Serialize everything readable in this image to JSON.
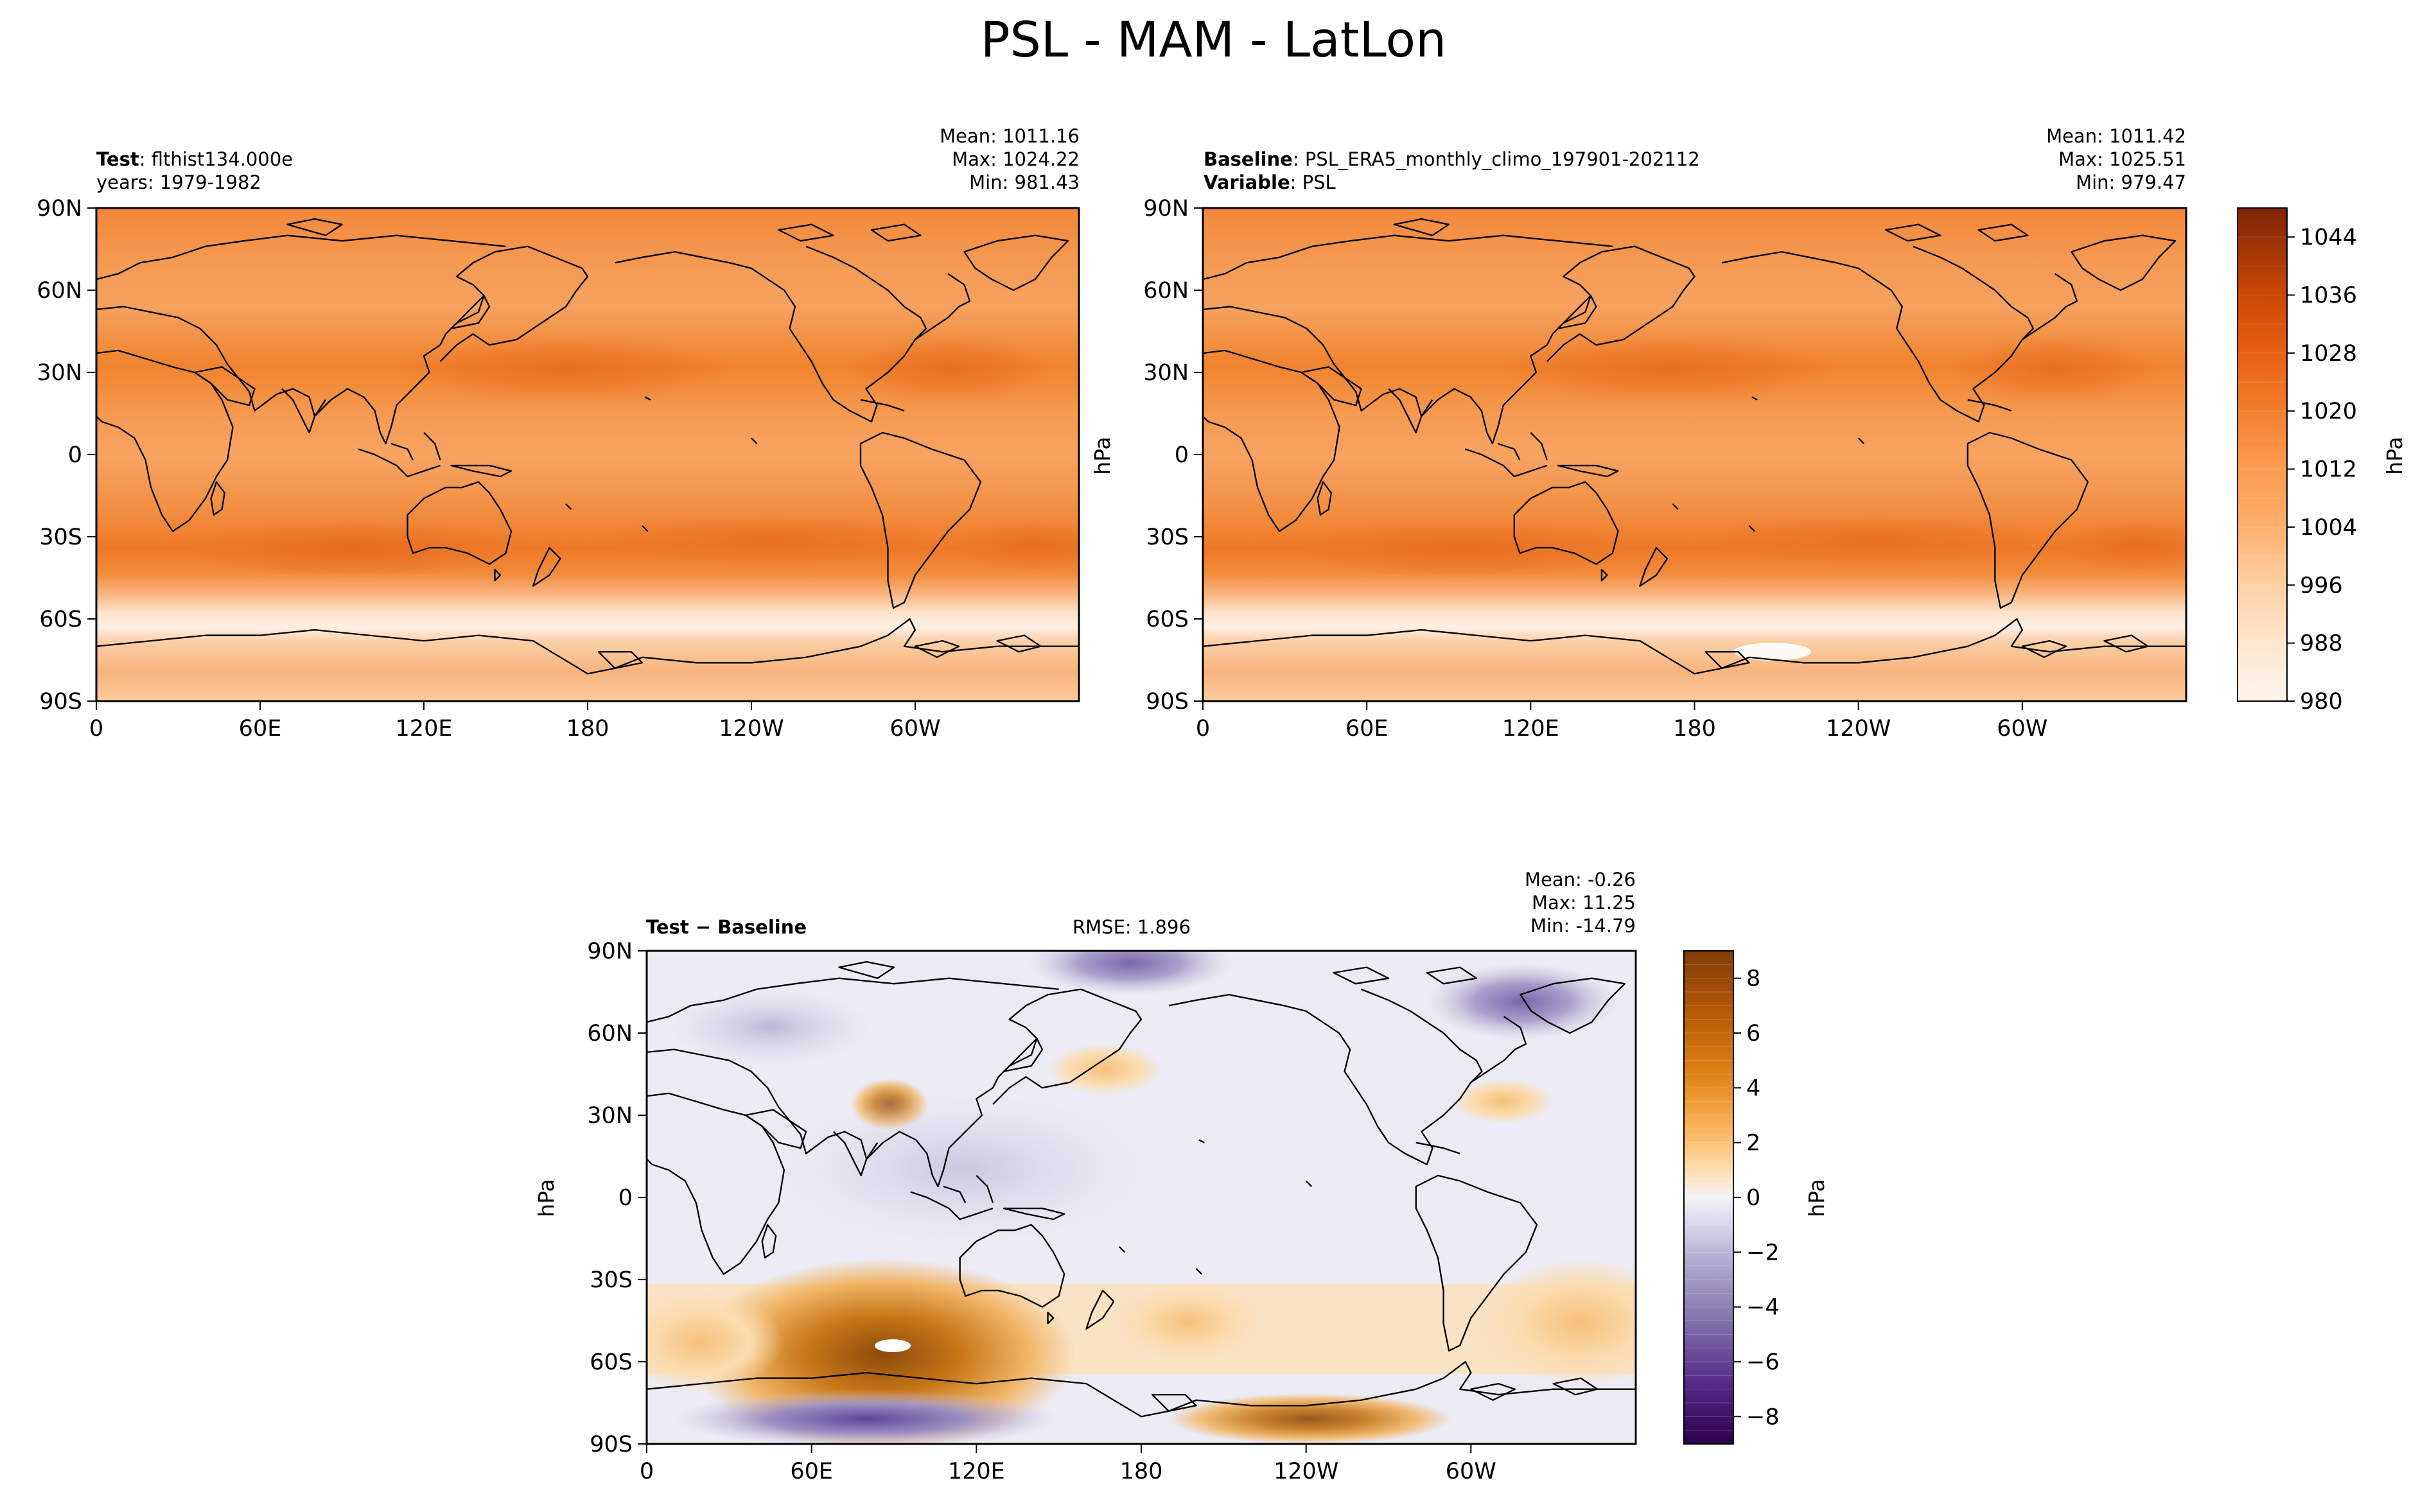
{
  "figure": {
    "title": "PSL - MAM - LatLon"
  },
  "test_panel": {
    "label_bold": "Test",
    "label_value": "flthist134.000e",
    "years": "years: 1979-1982",
    "mean": "Mean: 1011.16",
    "max": "Max: 1024.22",
    "min": "Min: 981.43"
  },
  "baseline_panel": {
    "label_bold": "Baseline",
    "label_value": "PSL_ERA5_monthly_climo_197901-202112",
    "variable_bold": "Variable",
    "variable_value": "PSL",
    "mean": "Mean: 1011.42",
    "max": "Max: 1025.51",
    "min": "Min: 979.47",
    "ylabel": "hPa"
  },
  "diff_panel": {
    "label": "Test − Baseline",
    "rmse": "RMSE: 1.896",
    "mean": "Mean: -0.26",
    "max": "Max: 11.25",
    "min": "Min: -14.79",
    "ylabel": "hPa"
  },
  "colorbar_top": {
    "label": "hPa",
    "ticks": [
      "980",
      "988",
      "996",
      "1004",
      "1012",
      "1020",
      "1028",
      "1036",
      "1044"
    ]
  },
  "colorbar_diff": {
    "label": "hPa",
    "ticks": [
      "−8",
      "−6",
      "−4",
      "−2",
      "0",
      "2",
      "4",
      "6",
      "8"
    ]
  },
  "colors": {
    "ocean_orange": "#f4924a",
    "land_orange": "#f59e58",
    "high_orange": "#ee7a2a",
    "pale": "#fce4cc",
    "diff_neutral": "#ecebf3",
    "diff_purple": "#6e59a5",
    "diff_brown": "#b86a14"
  },
  "chart_data": [
    {
      "type": "heatmap",
      "panel": "Test",
      "title": "",
      "variable": "PSL",
      "units": "hPa",
      "x_ticks": [
        "0",
        "60E",
        "120E",
        "180",
        "120W",
        "60W"
      ],
      "y_ticks": [
        "90N",
        "60N",
        "30N",
        "0",
        "30S",
        "60S",
        "90S"
      ],
      "xlim": [
        0,
        360
      ],
      "ylim": [
        -90,
        90
      ],
      "stats": {
        "mean": 1011.16,
        "max": 1024.22,
        "min": 981.43
      },
      "color_range": [
        980,
        1048
      ],
      "zonal_mean_profile": [
        {
          "lat": 90,
          "value": 1014
        },
        {
          "lat": 60,
          "value": 1012
        },
        {
          "lat": 30,
          "value": 1017
        },
        {
          "lat": 0,
          "value": 1011
        },
        {
          "lat": -30,
          "value": 1019
        },
        {
          "lat": -50,
          "value": 1000
        },
        {
          "lat": -65,
          "value": 988
        },
        {
          "lat": -90,
          "value": 995
        }
      ]
    },
    {
      "type": "heatmap",
      "panel": "Baseline",
      "title": "",
      "variable": "PSL",
      "units": "hPa",
      "x_ticks": [
        "0",
        "60E",
        "120E",
        "180",
        "120W",
        "60W"
      ],
      "y_ticks": [
        "90N",
        "60N",
        "30N",
        "0",
        "30S",
        "60S",
        "90S"
      ],
      "xlim": [
        0,
        360
      ],
      "ylim": [
        -90,
        90
      ],
      "stats": {
        "mean": 1011.42,
        "max": 1025.51,
        "min": 979.47
      },
      "color_range": [
        980,
        1048
      ],
      "zonal_mean_profile": [
        {
          "lat": 90,
          "value": 1015
        },
        {
          "lat": 60,
          "value": 1012
        },
        {
          "lat": 30,
          "value": 1017
        },
        {
          "lat": 0,
          "value": 1011
        },
        {
          "lat": -30,
          "value": 1019
        },
        {
          "lat": -50,
          "value": 1000
        },
        {
          "lat": -65,
          "value": 987
        },
        {
          "lat": -90,
          "value": 995
        }
      ]
    },
    {
      "type": "heatmap",
      "panel": "Test − Baseline",
      "title": "",
      "variable": "PSL",
      "units": "hPa",
      "x_ticks": [
        "0",
        "60E",
        "120E",
        "180",
        "120W",
        "60W"
      ],
      "y_ticks": [
        "90N",
        "60N",
        "30N",
        "0",
        "30S",
        "60S",
        "90S"
      ],
      "xlim": [
        0,
        360
      ],
      "ylim": [
        -90,
        90
      ],
      "stats": {
        "mean": -0.26,
        "max": 11.25,
        "min": -14.79,
        "rmse": 1.896
      },
      "color_range": [
        -9,
        9
      ],
      "features": [
        {
          "name": "positive anomaly south Indian Ocean",
          "lon": 85,
          "lat": -55,
          "value": 8
        },
        {
          "name": "negative anomaly Antarctica interior",
          "lon": 90,
          "lat": -80,
          "value": -8
        },
        {
          "name": "positive anomaly Tibetan Plateau",
          "lon": 85,
          "lat": 35,
          "value": 5
        },
        {
          "name": "positive anomaly West Antarctica",
          "lon": 240,
          "lat": -78,
          "value": 5
        },
        {
          "name": "negative anomaly Arctic / Greenland",
          "lon": 320,
          "lat": 70,
          "value": -4
        },
        {
          "name": "negative anomaly north Pacific",
          "lon": 180,
          "lat": 78,
          "value": -4
        }
      ]
    }
  ]
}
